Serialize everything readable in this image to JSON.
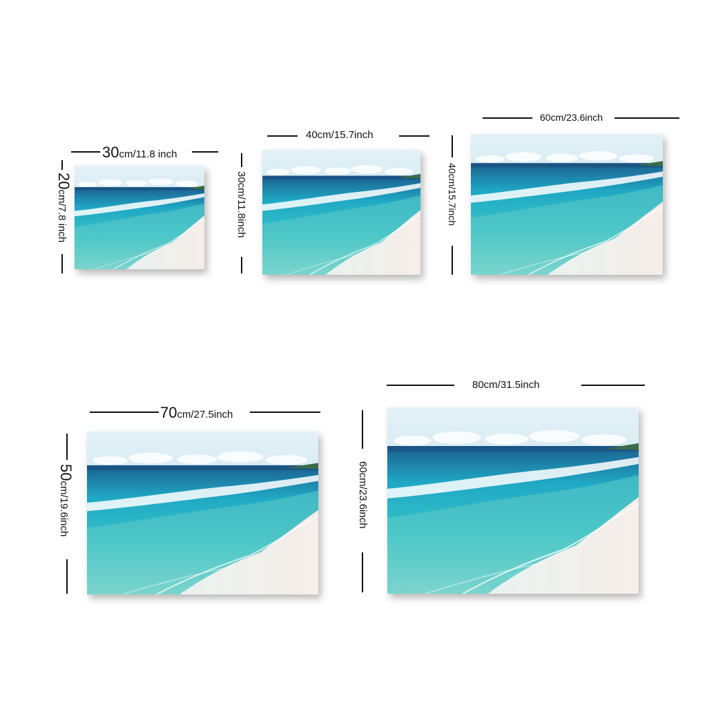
{
  "sizes": [
    {
      "width_cm": "30",
      "width_unit": "cm/",
      "width_in": "11.8",
      "width_in_unit": " inch",
      "height_cm": "20",
      "height_rest": "cm/7.8 inch"
    },
    {
      "width_label": "40cm/15.7inch",
      "height_label": "30cm/11.8inch"
    },
    {
      "width_label": "60cm/23.6inch",
      "height_label": "40cm/15.7inch"
    },
    {
      "width_cm": "70",
      "width_unit": "cm/",
      "width_in": "27.5",
      "width_in_unit": "inch",
      "height_cm": "50",
      "height_rest": "cm/19.6inch"
    },
    {
      "width_label": "80cm/31.5inch",
      "height_label": "60cm/23.6inch"
    }
  ],
  "colors": {
    "sky_top": "#d9ecf4",
    "sky_bottom": "#b9dbe8",
    "deep_sea": "#1f6f9e",
    "turquoise": "#1fb5c7",
    "shallow": "#7fd6cc",
    "sand": "#f4ece8",
    "line": "#111111"
  }
}
